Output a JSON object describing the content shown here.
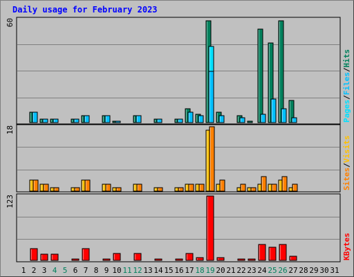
{
  "title": "Daily usage for February 2023",
  "colors": {
    "hits": "#00805c",
    "files": "#00c0ff",
    "pages": "#00e0ff",
    "visits": "#ffc000",
    "sites": "#ff8000",
    "kbytes": "#ff0000",
    "weekend_label": "#00805c",
    "day_label": "#000000"
  },
  "chart_data": [
    {
      "type": "bar",
      "panel": "hits-files-pages",
      "y_max_label": "60",
      "ylim": [
        0,
        60
      ],
      "legend": [
        "Pages",
        "/",
        "Files",
        "/",
        "Hits"
      ],
      "legend_colors": [
        "#00e0ff",
        "#000000",
        "#00c0ff",
        "#000000",
        "#00805c"
      ],
      "categories": [
        "1",
        "2",
        "3",
        "4",
        "5",
        "6",
        "7",
        "8",
        "9",
        "10",
        "11",
        "12",
        "13",
        "14",
        "15",
        "16",
        "17",
        "18",
        "19",
        "20",
        "21",
        "22",
        "23",
        "24",
        "25",
        "26",
        "27",
        "28",
        "29",
        "30",
        "31"
      ],
      "series": [
        {
          "name": "Hits",
          "values": [
            0,
            6,
            2,
            2,
            0,
            2,
            4,
            0,
            4,
            1,
            0,
            4,
            0,
            2,
            0,
            2,
            8,
            5,
            60,
            6,
            0,
            4,
            1,
            55,
            47,
            60,
            13,
            0,
            0,
            0,
            0
          ]
        },
        {
          "name": "Files",
          "values": [
            0,
            6,
            2,
            2,
            0,
            2,
            4,
            0,
            4,
            1,
            0,
            4,
            0,
            2,
            0,
            2,
            6,
            4,
            30,
            4,
            0,
            3,
            0,
            5,
            14,
            8,
            3,
            0,
            0,
            0,
            0
          ]
        },
        {
          "name": "Pages",
          "values": [
            0,
            6,
            2,
            2,
            0,
            2,
            4,
            0,
            4,
            1,
            0,
            4,
            0,
            2,
            0,
            2,
            6,
            4,
            45,
            4,
            0,
            3,
            0,
            5,
            14,
            8,
            3,
            0,
            0,
            0,
            0
          ]
        }
      ]
    },
    {
      "type": "bar",
      "panel": "visits-sites",
      "y_max_label": "18",
      "ylim": [
        0,
        18
      ],
      "legend": [
        "Sites",
        "/",
        "Visits"
      ],
      "legend_colors": [
        "#ff8000",
        "#000000",
        "#ffc000"
      ],
      "categories": [
        "1",
        "2",
        "3",
        "4",
        "5",
        "6",
        "7",
        "8",
        "9",
        "10",
        "11",
        "12",
        "13",
        "14",
        "15",
        "16",
        "17",
        "18",
        "19",
        "20",
        "21",
        "22",
        "23",
        "24",
        "25",
        "26",
        "27",
        "28",
        "29",
        "30",
        "31"
      ],
      "series": [
        {
          "name": "Visits",
          "values": [
            0,
            3,
            2,
            1,
            0,
            1,
            3,
            0,
            2,
            1,
            0,
            2,
            0,
            1,
            0,
            1,
            2,
            2,
            17,
            2,
            0,
            1,
            1,
            2,
            2,
            3,
            1,
            0,
            0,
            0,
            0
          ]
        },
        {
          "name": "Sites",
          "values": [
            0,
            3,
            2,
            1,
            0,
            1,
            3,
            0,
            2,
            1,
            0,
            2,
            0,
            1,
            0,
            1,
            2,
            2,
            18,
            3,
            0,
            2,
            1,
            4,
            2,
            4,
            2,
            0,
            0,
            0,
            0
          ]
        }
      ]
    },
    {
      "type": "bar",
      "panel": "kbytes",
      "y_max_label": "123",
      "ylim": [
        0,
        123
      ],
      "legend": [
        "KBytes"
      ],
      "legend_colors": [
        "#ff0000"
      ],
      "categories": [
        "1",
        "2",
        "3",
        "4",
        "5",
        "6",
        "7",
        "8",
        "9",
        "10",
        "11",
        "12",
        "13",
        "14",
        "15",
        "16",
        "17",
        "18",
        "19",
        "20",
        "21",
        "22",
        "23",
        "24",
        "25",
        "26",
        "27",
        "28",
        "29",
        "30",
        "31"
      ],
      "series": [
        {
          "name": "KBytes",
          "values": [
            0,
            22,
            12,
            12,
            0,
            3,
            22,
            0,
            3,
            13,
            0,
            13,
            0,
            3,
            0,
            3,
            13,
            5,
            123,
            5,
            0,
            3,
            3,
            30,
            25,
            30,
            8,
            0,
            0,
            0,
            0
          ]
        }
      ]
    }
  ],
  "weekend_days": [
    "4",
    "5",
    "11",
    "12",
    "18",
    "19",
    "25",
    "26"
  ]
}
